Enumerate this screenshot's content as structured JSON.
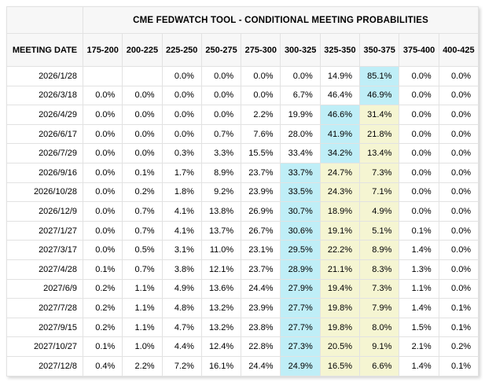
{
  "colors": {
    "cyan_highlight": "#bfeef7",
    "yellow_highlight": "#f5f5d2",
    "header_bg": "#f7f7f7",
    "grid_border": "#e2e2e2"
  },
  "chart_data": {
    "type": "table",
    "title": "CME FEDWATCH TOOL - CONDITIONAL MEETING PROBABILITIES",
    "row_header_label": "MEETING DATE",
    "columns": [
      "175-200",
      "200-225",
      "225-250",
      "250-275",
      "275-300",
      "300-325",
      "325-350",
      "350-375",
      "375-400",
      "400-425"
    ],
    "value_unit": "percent",
    "highlight_note": "cyan = index of highlighted max-probability cell, yellow = indices of pale-yellow cells",
    "rows": [
      {
        "date": "2026/1/28",
        "values": [
          null,
          null,
          0.0,
          0.0,
          0.0,
          0.0,
          14.9,
          85.1,
          0.0,
          0.0
        ],
        "cyan": 7,
        "yellow": []
      },
      {
        "date": "2026/3/18",
        "values": [
          0.0,
          0.0,
          0.0,
          0.0,
          0.0,
          6.7,
          46.4,
          46.9,
          0.0,
          0.0
        ],
        "cyan": 7,
        "yellow": []
      },
      {
        "date": "2026/4/29",
        "values": [
          0.0,
          0.0,
          0.0,
          0.0,
          2.2,
          19.9,
          46.6,
          31.4,
          0.0,
          0.0
        ],
        "cyan": 6,
        "yellow": [
          7
        ]
      },
      {
        "date": "2026/6/17",
        "values": [
          0.0,
          0.0,
          0.0,
          0.7,
          7.6,
          28.0,
          41.9,
          21.8,
          0.0,
          0.0
        ],
        "cyan": 6,
        "yellow": [
          7
        ]
      },
      {
        "date": "2026/7/29",
        "values": [
          0.0,
          0.0,
          0.3,
          3.3,
          15.5,
          33.4,
          34.2,
          13.4,
          0.0,
          0.0
        ],
        "cyan": 6,
        "yellow": [
          7
        ]
      },
      {
        "date": "2026/9/16",
        "values": [
          0.0,
          0.1,
          1.7,
          8.9,
          23.7,
          33.7,
          24.7,
          7.3,
          0.0,
          0.0
        ],
        "cyan": 5,
        "yellow": [
          6,
          7
        ]
      },
      {
        "date": "2026/10/28",
        "values": [
          0.0,
          0.2,
          1.8,
          9.2,
          23.9,
          33.5,
          24.3,
          7.1,
          0.0,
          0.0
        ],
        "cyan": 5,
        "yellow": [
          6,
          7
        ]
      },
      {
        "date": "2026/12/9",
        "values": [
          0.0,
          0.7,
          4.1,
          13.8,
          26.9,
          30.7,
          18.9,
          4.9,
          0.0,
          0.0
        ],
        "cyan": 5,
        "yellow": [
          6,
          7
        ]
      },
      {
        "date": "2027/1/27",
        "values": [
          0.0,
          0.7,
          4.1,
          13.7,
          26.7,
          30.6,
          19.1,
          5.1,
          0.1,
          0.0
        ],
        "cyan": 5,
        "yellow": [
          6,
          7
        ]
      },
      {
        "date": "2027/3/17",
        "values": [
          0.0,
          0.5,
          3.1,
          11.0,
          23.1,
          29.5,
          22.2,
          8.9,
          1.4,
          0.0
        ],
        "cyan": 5,
        "yellow": [
          6,
          7
        ]
      },
      {
        "date": "2027/4/28",
        "values": [
          0.1,
          0.7,
          3.8,
          12.1,
          23.7,
          28.9,
          21.1,
          8.3,
          1.3,
          0.0
        ],
        "cyan": 5,
        "yellow": [
          6,
          7
        ]
      },
      {
        "date": "2027/6/9",
        "values": [
          0.2,
          1.1,
          4.9,
          13.6,
          24.4,
          27.9,
          19.4,
          7.3,
          1.1,
          0.0
        ],
        "cyan": 5,
        "yellow": [
          6,
          7
        ]
      },
      {
        "date": "2027/7/28",
        "values": [
          0.2,
          1.1,
          4.8,
          13.2,
          23.9,
          27.7,
          19.8,
          7.9,
          1.4,
          0.1
        ],
        "cyan": 5,
        "yellow": [
          6,
          7
        ]
      },
      {
        "date": "2027/9/15",
        "values": [
          0.2,
          1.1,
          4.7,
          13.2,
          23.8,
          27.7,
          19.8,
          8.0,
          1.5,
          0.1
        ],
        "cyan": 5,
        "yellow": [
          6,
          7
        ]
      },
      {
        "date": "2027/10/27",
        "values": [
          0.1,
          1.0,
          4.4,
          12.4,
          22.8,
          27.3,
          20.5,
          9.1,
          2.1,
          0.2
        ],
        "cyan": 5,
        "yellow": [
          6,
          7
        ]
      },
      {
        "date": "2027/12/8",
        "values": [
          0.4,
          2.2,
          7.2,
          16.1,
          24.4,
          24.9,
          16.5,
          6.6,
          1.4,
          0.1
        ],
        "cyan": 5,
        "yellow": [
          6,
          7
        ]
      }
    ]
  }
}
